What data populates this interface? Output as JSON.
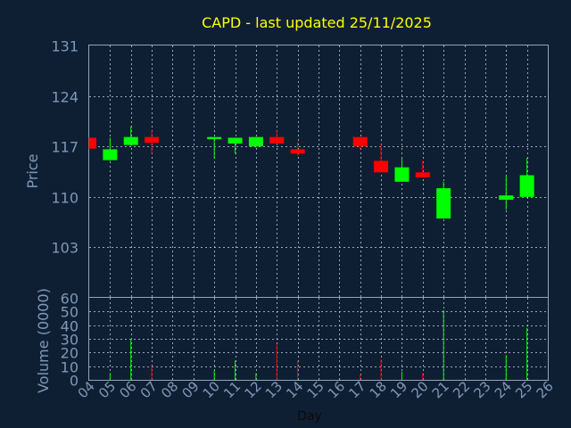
{
  "chart_data": [
    {
      "type": "candlestick",
      "title": "CAPD - last updated 25/11/2025",
      "ylabel": "Price",
      "ylim": [
        96,
        131
      ],
      "y_ticks": [
        131,
        124,
        117,
        110,
        103
      ],
      "grid": true,
      "colors": {
        "up": "#00ff00",
        "down": "#ff0000"
      },
      "x": [
        "04",
        "05",
        "06",
        "07",
        "08",
        "09",
        "10",
        "11",
        "12",
        "13",
        "14",
        "15",
        "16",
        "17",
        "18",
        "19",
        "20",
        "21",
        "22",
        "23",
        "24",
        "25",
        "26"
      ],
      "candles": [
        {
          "day": "04",
          "open": 118.2,
          "high": 118.3,
          "low": 116.6,
          "close": 116.7
        },
        {
          "day": "05",
          "open": 115.1,
          "high": 118.2,
          "low": 115.0,
          "close": 116.6
        },
        {
          "day": "06",
          "open": 117.2,
          "high": 119.8,
          "low": 117.1,
          "close": 118.3
        },
        {
          "day": "07",
          "open": 118.3,
          "high": 119.2,
          "low": 116.0,
          "close": 117.5
        },
        {
          "day": "10",
          "open": 118.0,
          "high": 118.3,
          "low": 115.3,
          "close": 118.3
        },
        {
          "day": "11",
          "open": 117.4,
          "high": 118.2,
          "low": 116.0,
          "close": 118.2
        },
        {
          "day": "12",
          "open": 117.0,
          "high": 118.3,
          "low": 116.8,
          "close": 118.3
        },
        {
          "day": "13",
          "open": 118.3,
          "high": 119.2,
          "low": 117.3,
          "close": 117.4
        },
        {
          "day": "14",
          "open": 116.6,
          "high": 117.6,
          "low": 115.7,
          "close": 116.0
        },
        {
          "day": "17",
          "open": 118.3,
          "high": 118.3,
          "low": 116.6,
          "close": 117.0
        },
        {
          "day": "18",
          "open": 115.0,
          "high": 117.3,
          "low": 113.4,
          "close": 113.4
        },
        {
          "day": "19",
          "open": 112.1,
          "high": 115.4,
          "low": 112.1,
          "close": 114.1
        },
        {
          "day": "20",
          "open": 113.4,
          "high": 115.0,
          "low": 112.7,
          "close": 112.7
        },
        {
          "day": "21",
          "open": 107.0,
          "high": 112.1,
          "low": 107.0,
          "close": 111.2
        },
        {
          "day": "24",
          "open": 109.6,
          "high": 113.0,
          "low": 108.2,
          "close": 110.2
        },
        {
          "day": "25",
          "open": 110.0,
          "high": 115.4,
          "low": 110.0,
          "close": 113.0
        }
      ]
    },
    {
      "type": "bar",
      "ylabel": "Volume (0000)",
      "xlabel": "Day",
      "ylim": [
        0,
        60
      ],
      "y_ticks": [
        0,
        10,
        20,
        30,
        40,
        50,
        60
      ],
      "grid": true,
      "categories": [
        "04",
        "05",
        "06",
        "07",
        "08",
        "09",
        "10",
        "11",
        "12",
        "13",
        "14",
        "15",
        "16",
        "17",
        "18",
        "19",
        "20",
        "21",
        "22",
        "23",
        "24",
        "25",
        "26"
      ],
      "bars": [
        {
          "day": "05",
          "value": 5,
          "color": "#00ff00"
        },
        {
          "day": "06",
          "value": 30,
          "color": "#00ff00"
        },
        {
          "day": "07",
          "value": 10,
          "color": "#ff0000"
        },
        {
          "day": "10",
          "value": 7,
          "color": "#00ff00"
        },
        {
          "day": "11",
          "value": 14,
          "color": "#00ff00"
        },
        {
          "day": "12",
          "value": 5,
          "color": "#00ff00"
        },
        {
          "day": "13",
          "value": 26,
          "color": "#ff0000"
        },
        {
          "day": "14",
          "value": 14,
          "color": "#ff0000"
        },
        {
          "day": "17",
          "value": 4,
          "color": "#ff0000"
        },
        {
          "day": "18",
          "value": 15,
          "color": "#ff0000"
        },
        {
          "day": "19",
          "value": 6,
          "color": "#00ff00"
        },
        {
          "day": "20",
          "value": 5,
          "color": "#ff0000"
        },
        {
          "day": "21",
          "value": 51,
          "color": "#00ff00"
        },
        {
          "day": "24",
          "value": 18,
          "color": "#00ff00"
        },
        {
          "day": "25",
          "value": 38,
          "color": "#00ff00"
        }
      ]
    }
  ]
}
